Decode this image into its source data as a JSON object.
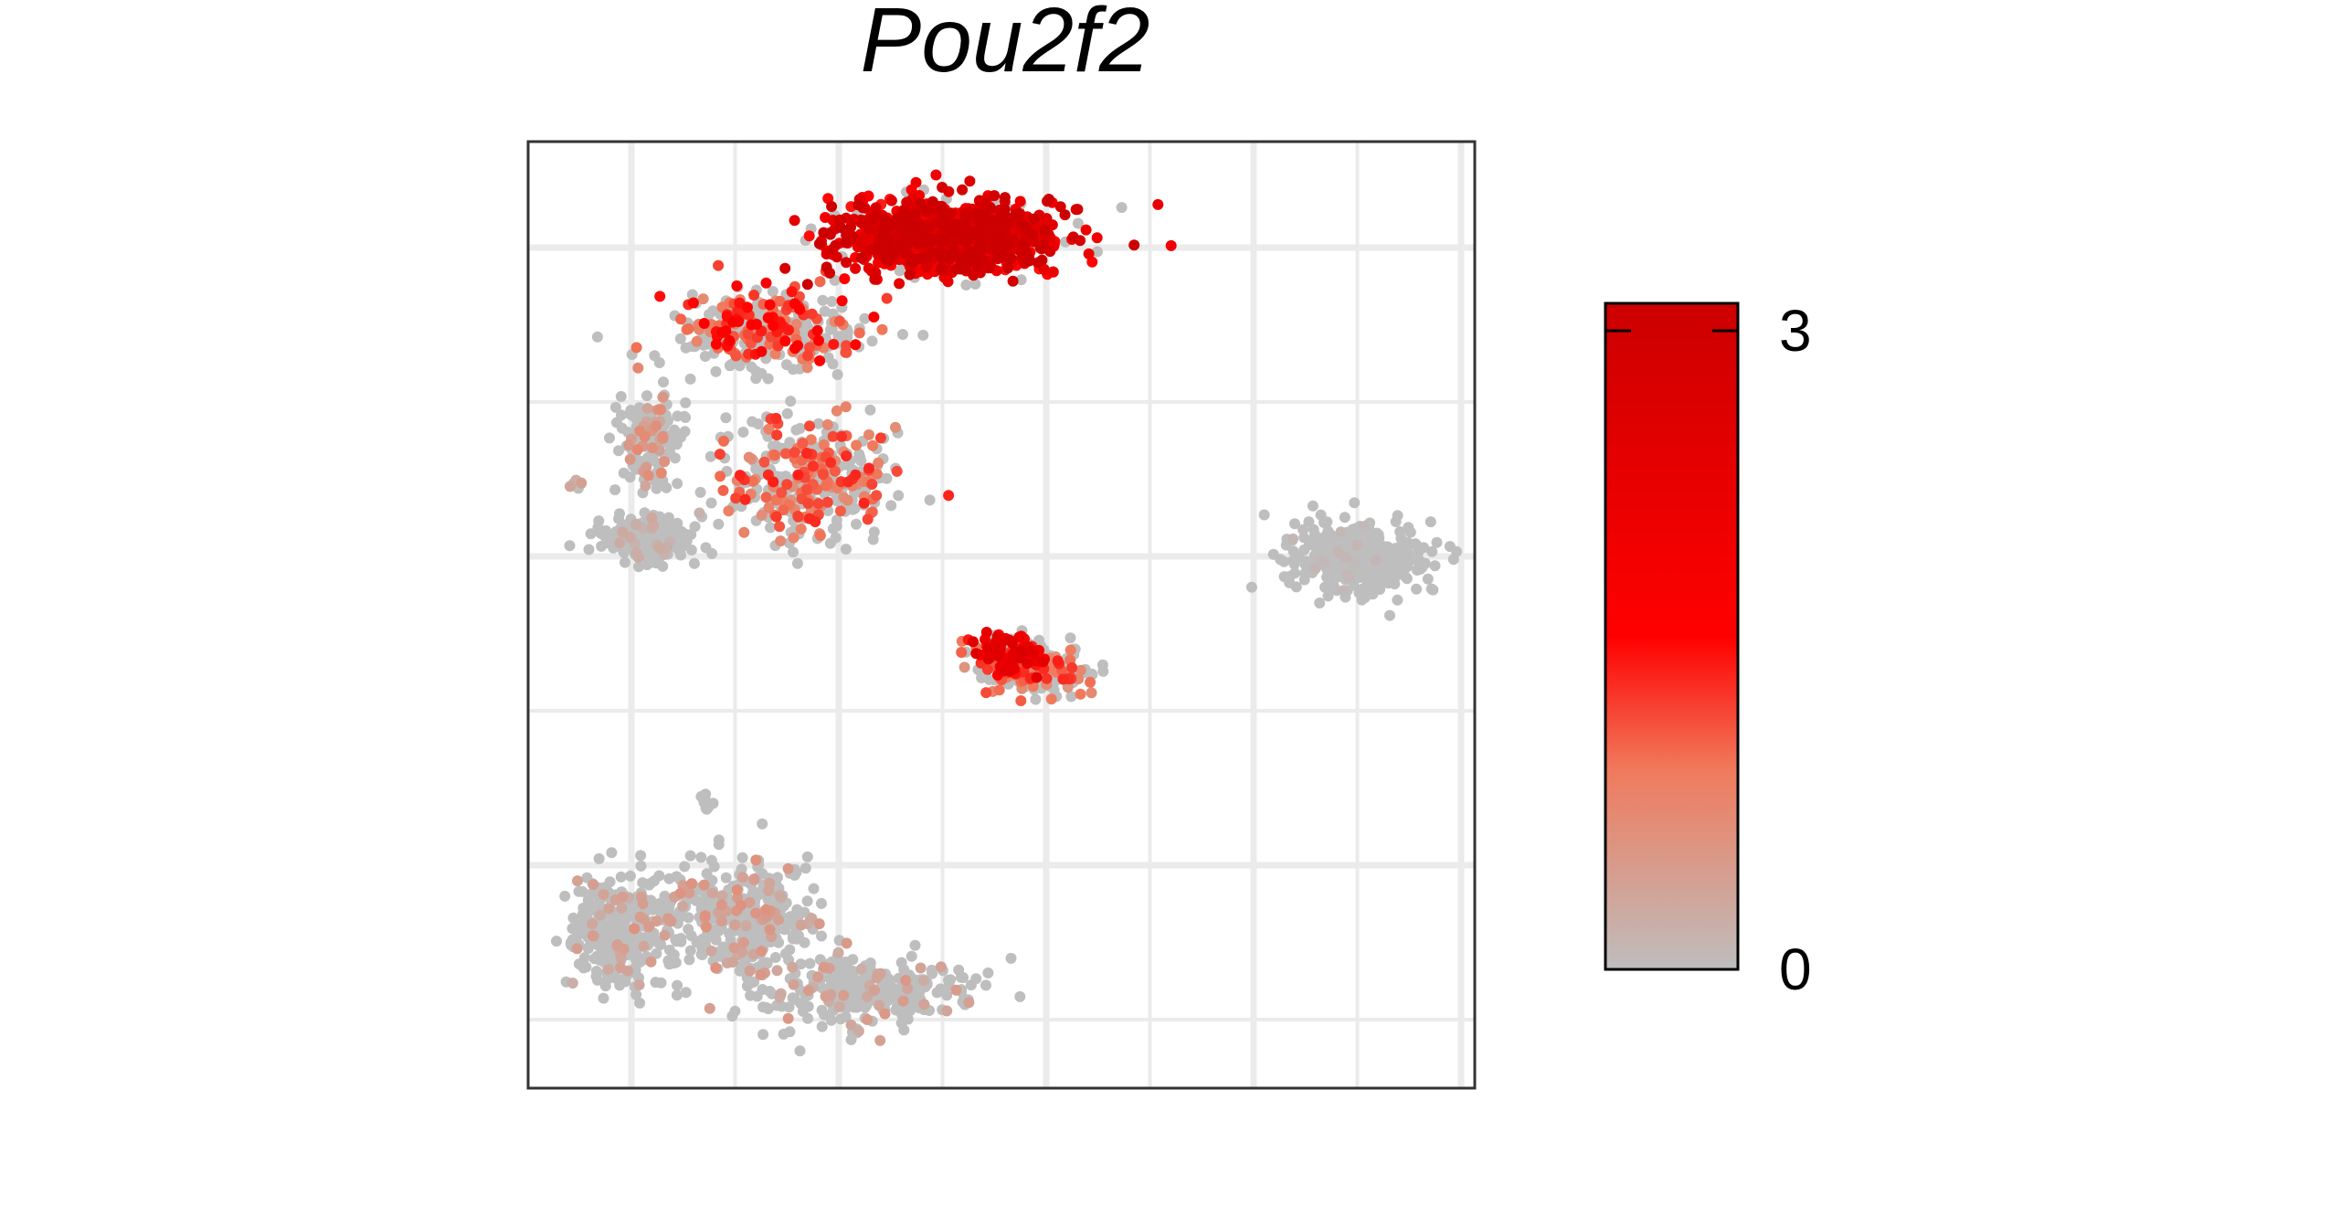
{
  "chart_data": {
    "type": "scatter",
    "title": "Pou2f2",
    "xlabel": "",
    "ylabel": "",
    "grid": true,
    "legend": {
      "type": "colorbar",
      "placement": "right",
      "min": 0,
      "max": 3,
      "ticks": [
        3,
        0
      ],
      "tick_labels": [
        "3",
        "0"
      ],
      "colors": [
        "#bebebe",
        "#ff0000",
        "#cc0000"
      ]
    },
    "clusters": [
      {
        "name": "",
        "center": [
          0.44,
          0.1
        ],
        "spread": [
          0.12,
          0.04
        ],
        "count": 900,
        "mean_expression": 2.2
      },
      {
        "name": "",
        "center": [
          0.25,
          0.2
        ],
        "spread": [
          0.1,
          0.04
        ],
        "count": 350,
        "mean_expression": 1.1
      },
      {
        "name": "",
        "center": [
          0.3,
          0.36
        ],
        "spread": [
          0.09,
          0.06
        ],
        "count": 380,
        "mean_expression": 0.9
      },
      {
        "name": "",
        "center": [
          0.13,
          0.31
        ],
        "spread": [
          0.03,
          0.05
        ],
        "count": 150,
        "mean_expression": 0.5
      },
      {
        "name": "",
        "center": [
          0.13,
          0.42
        ],
        "spread": [
          0.05,
          0.025
        ],
        "count": 260,
        "mean_expression": 0.2
      },
      {
        "name": "",
        "center": [
          0.51,
          0.54
        ],
        "spread": [
          0.035,
          0.02
        ],
        "count": 140,
        "mean_expression": 1.7
      },
      {
        "name": "",
        "center": [
          0.54,
          0.56
        ],
        "spread": [
          0.06,
          0.025
        ],
        "count": 170,
        "mean_expression": 0.9
      },
      {
        "name": "",
        "center": [
          0.88,
          0.44
        ],
        "spread": [
          0.07,
          0.04
        ],
        "count": 360,
        "mean_expression": 0.08
      },
      {
        "name": "",
        "center": [
          0.1,
          0.83
        ],
        "spread": [
          0.06,
          0.06
        ],
        "count": 320,
        "mean_expression": 0.3
      },
      {
        "name": "",
        "center": [
          0.23,
          0.82
        ],
        "spread": [
          0.08,
          0.06
        ],
        "count": 350,
        "mean_expression": 0.4
      },
      {
        "name": "",
        "center": [
          0.36,
          0.9
        ],
        "spread": [
          0.12,
          0.04
        ],
        "count": 300,
        "mean_expression": 0.35
      },
      {
        "name": "",
        "center": [
          0.19,
          0.7
        ],
        "spread": [
          0.01,
          0.008
        ],
        "count": 10,
        "mean_expression": 0.0
      },
      {
        "name": "",
        "center": [
          0.05,
          0.36
        ],
        "spread": [
          0.008,
          0.005
        ],
        "count": 6,
        "mean_expression": 0.3
      }
    ]
  }
}
